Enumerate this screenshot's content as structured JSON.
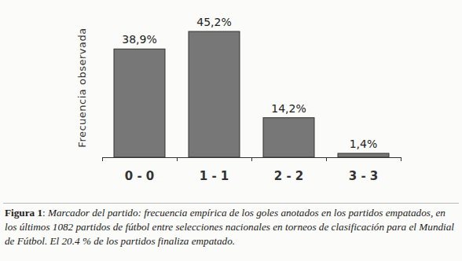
{
  "chart_data": {
    "type": "bar",
    "y_label": "Frecuencia observada",
    "categories": [
      "0 - 0",
      "1 - 1",
      "2 - 2",
      "3 - 3"
    ],
    "values": [
      38.9,
      45.2,
      14.2,
      1.4
    ],
    "value_labels": [
      "38,9%",
      "45,2%",
      "14,2%",
      "1,4%"
    ],
    "color": "#777777",
    "ylim": [
      0,
      50
    ],
    "data_labels": true,
    "tick_labels": "x",
    "caption": {
      "label": "Figura 1",
      "text": "Marcador del partido: frecuencia empírica de los goles anotados en los partidos empatados, en los últimos 1082 partidos de fútbol entre selecciones nacionales en torneos de clasificación para el Mundial de Fútbol. El 20.4 % de los partidos finaliza empatado."
    }
  }
}
